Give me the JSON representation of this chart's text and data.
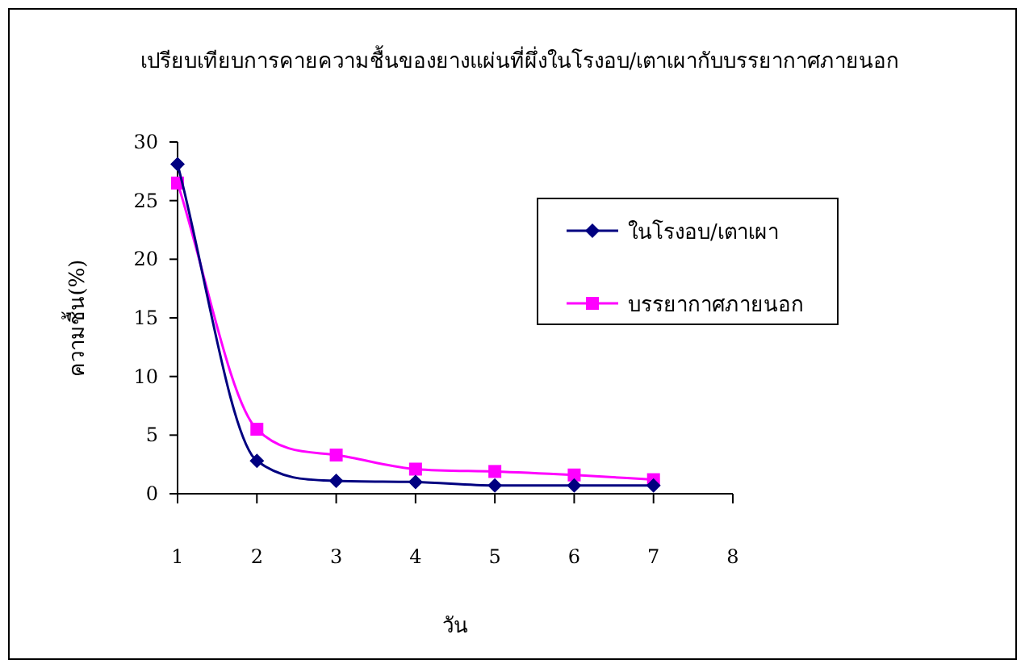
{
  "chart_data": {
    "type": "line",
    "title": "เปรียบเทียบการคายความชื้นของยางแผ่นที่ผึ่งในโรงอบ/เตาเผากับบรรยากาศภายนอก",
    "xlabel": "วัน",
    "ylabel": "ความชื้น(%)",
    "x": [
      1,
      2,
      3,
      4,
      5,
      6,
      7
    ],
    "series": [
      {
        "name": "ในโรงอบ/เตาเผา",
        "color": "#000080",
        "marker": "diamond",
        "values": [
          28.1,
          2.8,
          1.1,
          1.0,
          0.7,
          0.7,
          0.7
        ]
      },
      {
        "name": "บรรยากาศภายนอก",
        "color": "#ff00ff",
        "marker": "square",
        "values": [
          26.5,
          5.5,
          3.3,
          2.1,
          1.9,
          1.6,
          1.2
        ]
      }
    ],
    "xlim": [
      1,
      8
    ],
    "xticks": [
      1,
      2,
      3,
      4,
      5,
      6,
      7,
      8
    ],
    "ylim": [
      0,
      30
    ],
    "yticks": [
      0,
      5,
      10,
      15,
      20,
      25,
      30
    ],
    "grid": false,
    "legend": "top right",
    "line_style": "solid"
  }
}
